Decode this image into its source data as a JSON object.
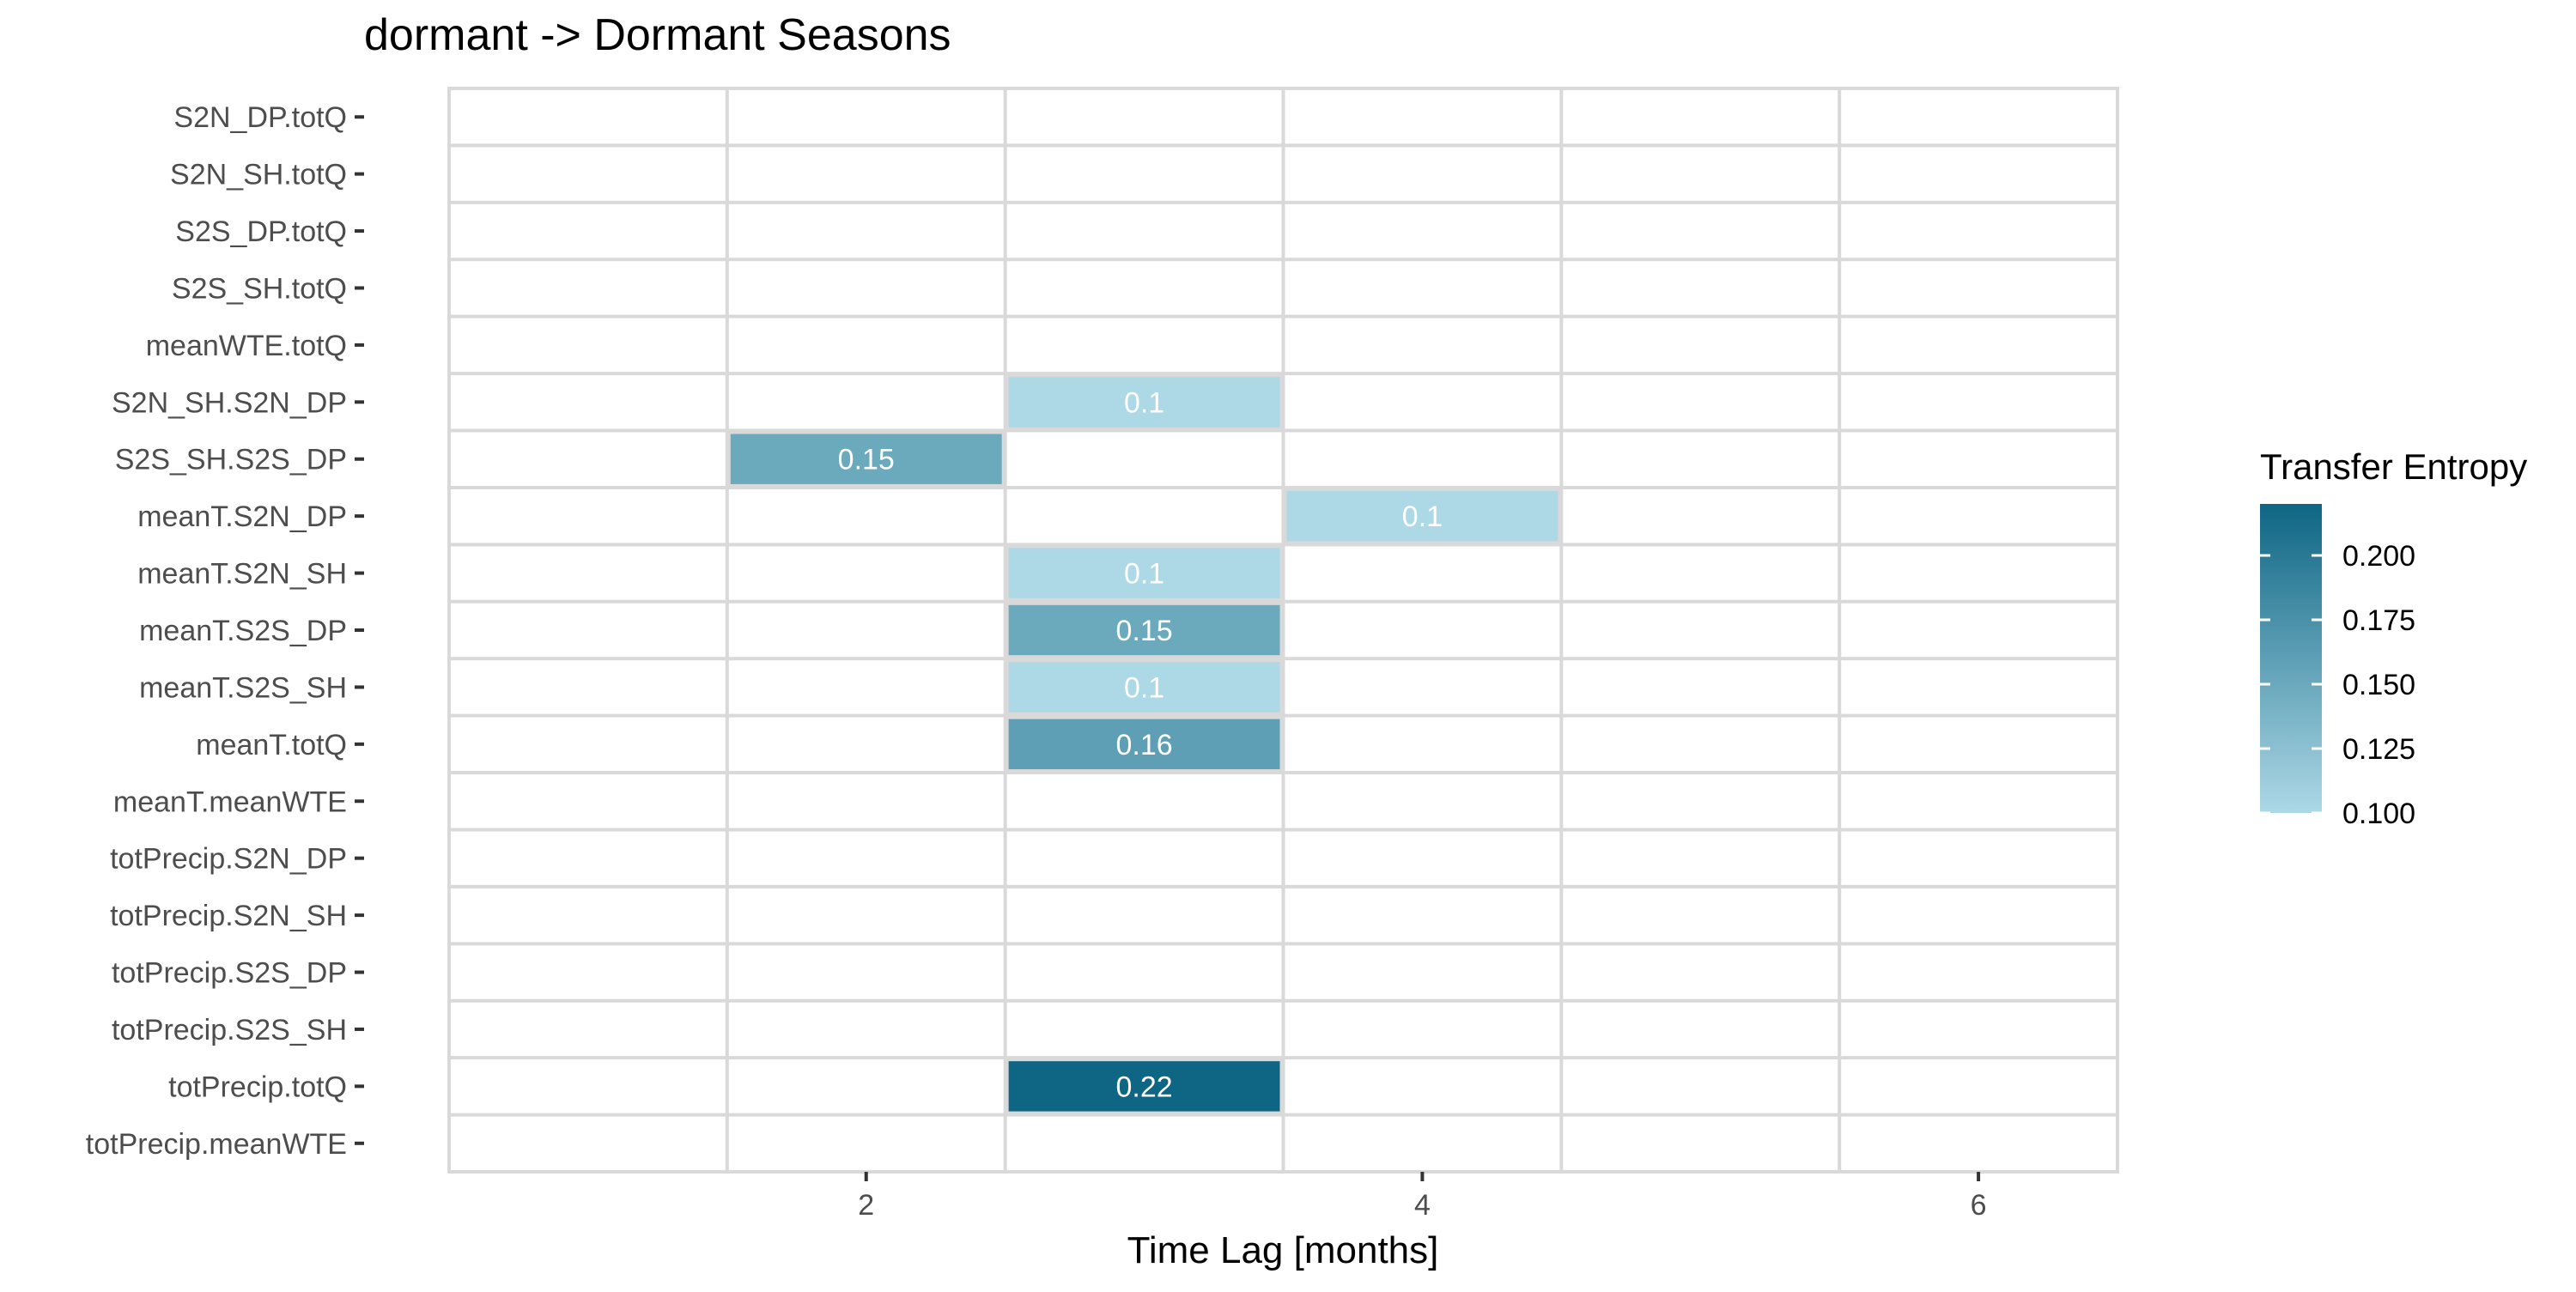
{
  "chart_data": {
    "type": "heatmap",
    "title": "dormant -> Dormant Seasons",
    "xlabel": "Time Lag [months]",
    "ylabel": "",
    "x_range": [
      1,
      6
    ],
    "x_ticks": [
      2,
      4,
      6
    ],
    "y_categories": [
      "S2N_DP.totQ",
      "S2N_SH.totQ",
      "S2S_DP.totQ",
      "S2S_SH.totQ",
      "meanWTE.totQ",
      "S2N_SH.S2N_DP",
      "S2S_SH.S2S_DP",
      "meanT.S2N_DP",
      "meanT.S2N_SH",
      "meanT.S2S_DP",
      "meanT.S2S_SH",
      "meanT.totQ",
      "meanT.meanWTE",
      "totPrecip.S2N_DP",
      "totPrecip.S2N_SH",
      "totPrecip.S2S_DP",
      "totPrecip.S2S_SH",
      "totPrecip.totQ",
      "totPrecip.meanWTE"
    ],
    "cells": [
      {
        "y": "S2N_SH.S2N_DP",
        "x": 3,
        "value": 0.1,
        "label": "0.1"
      },
      {
        "y": "S2S_SH.S2S_DP",
        "x": 2,
        "value": 0.15,
        "label": "0.15"
      },
      {
        "y": "meanT.S2N_DP",
        "x": 4,
        "value": 0.1,
        "label": "0.1"
      },
      {
        "y": "meanT.S2N_SH",
        "x": 3,
        "value": 0.1,
        "label": "0.1"
      },
      {
        "y": "meanT.S2S_DP",
        "x": 3,
        "value": 0.15,
        "label": "0.15"
      },
      {
        "y": "meanT.S2S_SH",
        "x": 3,
        "value": 0.1,
        "label": "0.1"
      },
      {
        "y": "meanT.totQ",
        "x": 3,
        "value": 0.16,
        "label": "0.16"
      },
      {
        "y": "totPrecip.totQ",
        "x": 3,
        "value": 0.22,
        "label": "0.22"
      }
    ],
    "legend": {
      "title": "Transfer Entropy",
      "position": "right",
      "min": 0.1,
      "max": 0.22,
      "ticks": [
        "0.100",
        "0.125",
        "0.150",
        "0.175",
        "0.200"
      ],
      "color_low": "#add8e6",
      "color_high": "#0e6684"
    },
    "grid": true,
    "grid_color": "#d9d9d9"
  }
}
